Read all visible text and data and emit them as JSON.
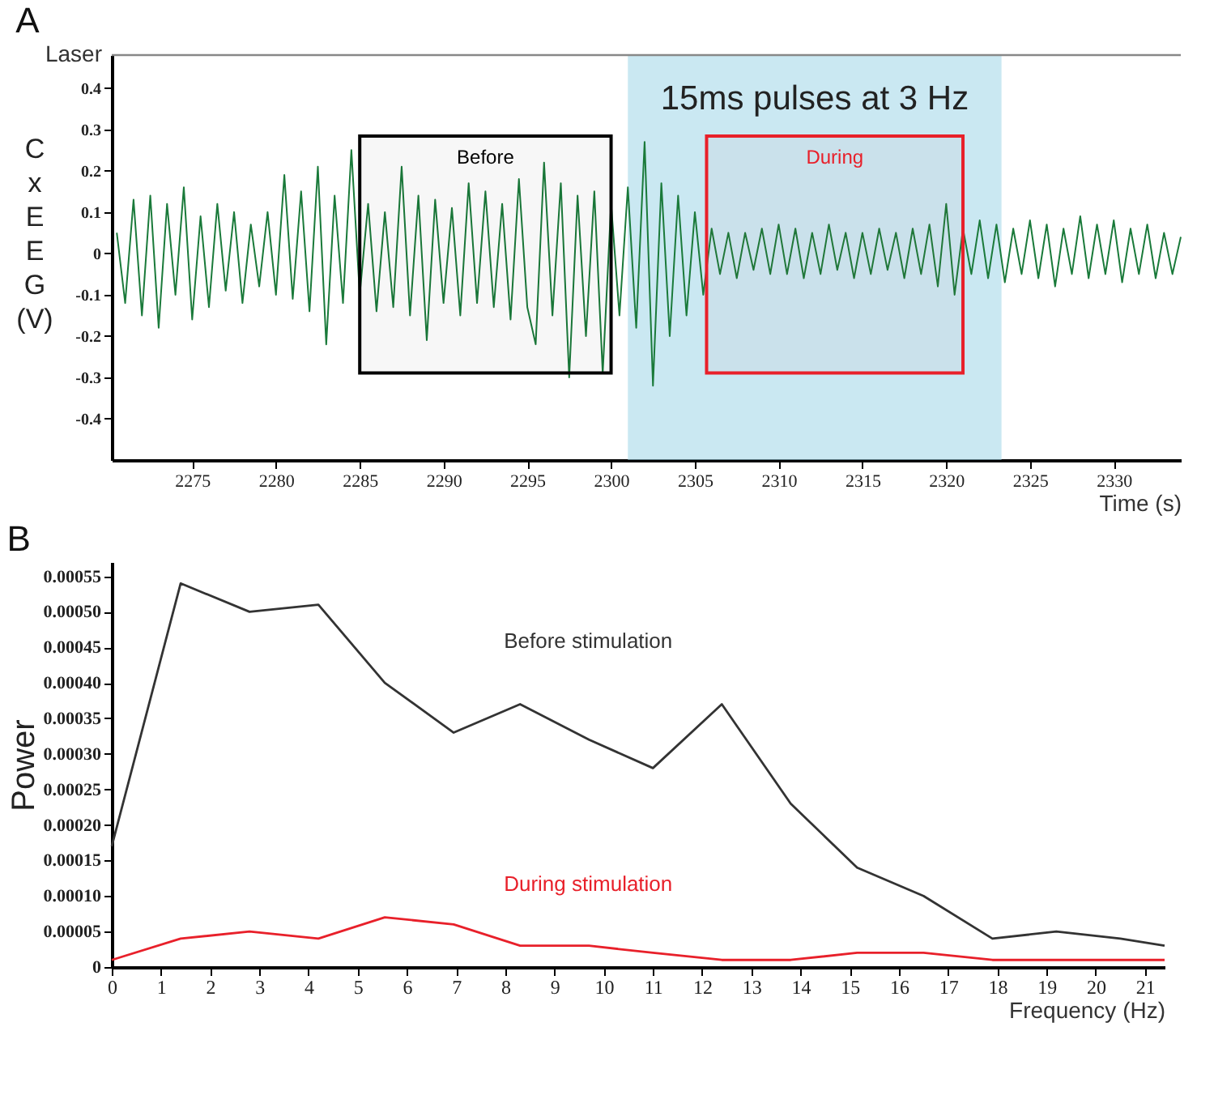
{
  "chart_data": [
    {
      "type": "line",
      "title": "A",
      "xlabel": "Time (s)",
      "ylabel": "CxEEG (V)",
      "xlim": [
        2270.2,
        2334
      ],
      "xticks": [
        2275,
        2280,
        2285,
        2290,
        2295,
        2300,
        2305,
        2310,
        2315,
        2320,
        2325,
        2330
      ],
      "ylim": [
        -0.5,
        0.48
      ],
      "yticks": [
        -0.4,
        -0.3,
        -0.2,
        -0.1,
        0,
        0.1,
        0.2,
        0.3,
        0.4
      ],
      "grid": false,
      "x": [
        2270.5,
        2271,
        2271.5,
        2272,
        2272.5,
        2273,
        2273.5,
        2274,
        2274.5,
        2275,
        2275.5,
        2276,
        2276.5,
        2277,
        2277.5,
        2278,
        2278.5,
        2279,
        2279.5,
        2280,
        2280.5,
        2281,
        2281.5,
        2282,
        2282.5,
        2283,
        2283.5,
        2284,
        2284.5,
        2285,
        2285.5,
        2286,
        2286.5,
        2287,
        2287.5,
        2288,
        2288.5,
        2289,
        2289.5,
        2290,
        2290.5,
        2291,
        2291.5,
        2292,
        2292.5,
        2293,
        2293.5,
        2294,
        2294.5,
        2295,
        2295.5,
        2296,
        2296.5,
        2297,
        2297.5,
        2298,
        2298.5,
        2299,
        2299.5,
        2300,
        2300.5,
        2301,
        2301.5,
        2302,
        2302.5,
        2303,
        2303.5,
        2304,
        2304.5,
        2305,
        2305.5,
        2306,
        2306.5,
        2307,
        2307.5,
        2308,
        2308.5,
        2309,
        2309.5,
        2310,
        2310.5,
        2311,
        2311.5,
        2312,
        2312.5,
        2313,
        2313.5,
        2314,
        2314.5,
        2315,
        2315.5,
        2316,
        2316.5,
        2317,
        2317.5,
        2318,
        2318.5,
        2319,
        2319.5,
        2320,
        2320.5,
        2321,
        2321.5,
        2322,
        2322.5,
        2323,
        2323.5,
        2324,
        2324.5,
        2325,
        2325.5,
        2326,
        2326.5,
        2327,
        2327.5,
        2328,
        2328.5,
        2329,
        2329.5,
        2330,
        2330.5,
        2331,
        2331.5,
        2332,
        2332.5,
        2333,
        2333.5,
        2334
      ],
      "series": [
        {
          "color": "#1a7a3a",
          "values": [
            0.05,
            -0.12,
            0.13,
            -0.15,
            0.14,
            -0.18,
            0.12,
            -0.1,
            0.16,
            -0.16,
            0.09,
            -0.13,
            0.12,
            -0.09,
            0.1,
            -0.12,
            0.07,
            -0.08,
            0.1,
            -0.1,
            0.19,
            -0.11,
            0.15,
            -0.14,
            0.21,
            -0.22,
            0.14,
            -0.12,
            0.25,
            -0.1,
            0.12,
            -0.14,
            0.1,
            -0.13,
            0.21,
            -0.15,
            0.14,
            -0.21,
            0.13,
            -0.12,
            0.11,
            -0.15,
            0.17,
            -0.12,
            0.15,
            -0.13,
            0.12,
            -0.16,
            0.18,
            -0.13,
            -0.22,
            0.22,
            -0.15,
            0.17,
            -0.3,
            0.14,
            -0.2,
            0.15,
            -0.29,
            0.12,
            -0.15,
            0.16,
            -0.18,
            0.27,
            -0.32,
            0.17,
            -0.2,
            0.14,
            -0.15,
            0.1,
            -0.1,
            0.06,
            -0.05,
            0.05,
            -0.06,
            0.05,
            -0.04,
            0.06,
            -0.05,
            0.07,
            -0.05,
            0.06,
            -0.06,
            0.05,
            -0.05,
            0.07,
            -0.04,
            0.05,
            -0.06,
            0.05,
            -0.05,
            0.06,
            -0.04,
            0.05,
            -0.06,
            0.06,
            -0.05,
            0.07,
            -0.08,
            0.12,
            -0.1,
            0.06,
            -0.05,
            0.08,
            -0.06,
            0.07,
            -0.07,
            0.06,
            -0.05,
            0.08,
            -0.06,
            0.07,
            -0.08,
            0.06,
            -0.05,
            0.09,
            -0.06,
            0.07,
            -0.05,
            0.08,
            -0.07,
            0.06,
            -0.05,
            0.07,
            -0.06,
            0.05,
            -0.05,
            0.04
          ]
        }
      ],
      "bands": [
        {
          "axis": "x",
          "from": 2301,
          "to": 2323.3,
          "label": "15ms pulses at 3 Hz"
        },
        {
          "axis": "x",
          "from": 2285,
          "to": 2300,
          "label": "Before",
          "color": "#000000"
        },
        {
          "axis": "x",
          "from": 2305.7,
          "to": 2321,
          "label": "During",
          "color": "#e8202a"
        }
      ],
      "ref_lines": [
        {
          "axis": "y",
          "value": 0.48,
          "label": "Laser",
          "color": "#888888"
        }
      ]
    },
    {
      "type": "line",
      "title": "B",
      "xlabel": "Frequency (Hz)",
      "ylabel": "Power",
      "xlim": [
        0,
        21.4
      ],
      "xticks": [
        0,
        1,
        2,
        3,
        4,
        5,
        6,
        7,
        8,
        9,
        10,
        11,
        12,
        13,
        14,
        15,
        16,
        17,
        18,
        19,
        20,
        21
      ],
      "ylim": [
        0,
        0.00057
      ],
      "yticks": [
        0,
        {
          "value": 5e-05,
          "label": "0.00005"
        },
        {
          "value": 0.0001,
          "label": "0.00010"
        },
        {
          "value": 0.00015,
          "label": "0.00015"
        },
        {
          "value": 0.0002,
          "label": "0.00020"
        },
        {
          "value": 0.00025,
          "label": "0.00025"
        },
        {
          "value": 0.0003,
          "label": "0.00030"
        },
        {
          "value": 0.00035,
          "label": "0.00035"
        },
        {
          "value": 0.0004,
          "label": "0.00040"
        },
        {
          "value": 0.00045,
          "label": "0.00045"
        },
        {
          "value": 0.0005,
          "label": "0.00050"
        },
        {
          "value": 0.00055,
          "label": "0.00055"
        }
      ],
      "grid": false,
      "x": [
        0,
        1.4,
        2.8,
        4.2,
        5.55,
        6.95,
        8.3,
        9.7,
        11,
        12.4,
        13.8,
        15.15,
        16.5,
        17.9,
        19.2,
        20.5,
        21.4
      ],
      "series": [
        {
          "name": "Before stimulation",
          "color": "#333333",
          "values": [
            0.00017,
            0.00054,
            0.0005,
            0.00051,
            0.0004,
            0.00033,
            0.00037,
            0.00032,
            0.00028,
            0.00037,
            0.00023,
            0.00014,
            0.0001,
            4e-05,
            5e-05,
            4e-05,
            3e-05
          ]
        },
        {
          "name": "During stimulation",
          "color": "#e8202a",
          "values": [
            1e-05,
            4e-05,
            5e-05,
            4e-05,
            7e-05,
            6e-05,
            3e-05,
            3e-05,
            2e-05,
            1e-05,
            1e-05,
            2e-05,
            2e-05,
            1e-05,
            1e-05,
            1e-05,
            1e-05
          ]
        }
      ]
    }
  ]
}
